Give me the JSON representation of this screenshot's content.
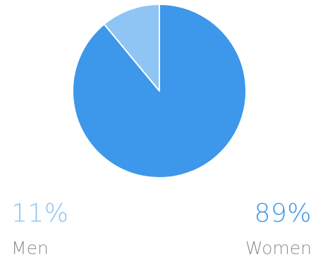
{
  "chart_data": {
    "type": "pie",
    "categories": [
      "Men",
      "Women"
    ],
    "values": [
      11,
      89
    ],
    "percent_labels": [
      "11%",
      "89%"
    ],
    "colors": [
      "#8ec5f4",
      "#3d97ea"
    ],
    "legend_placement": "bottom"
  }
}
